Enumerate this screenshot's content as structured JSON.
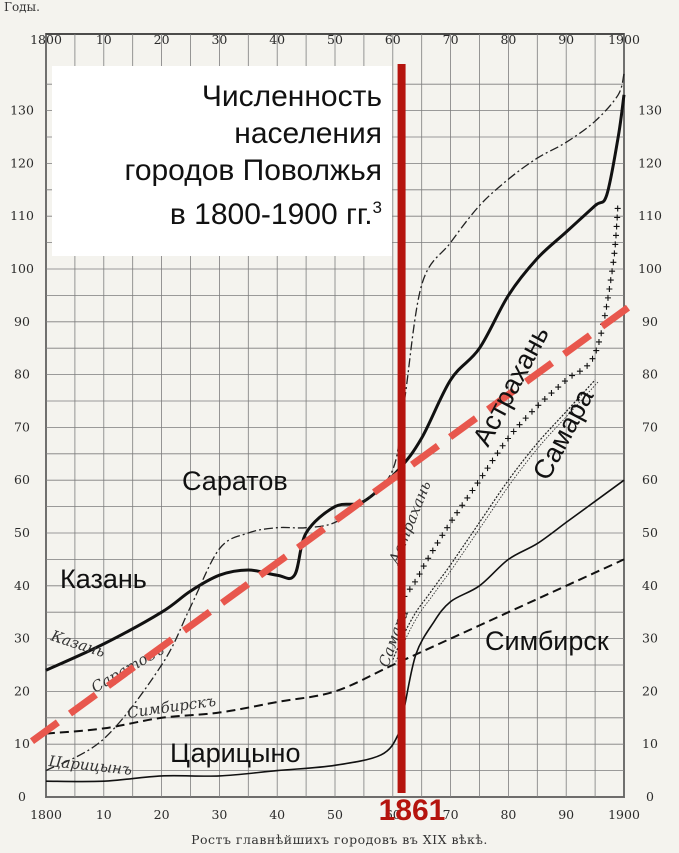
{
  "header": {
    "y_axis_title": "Годы."
  },
  "title": {
    "line1": "Численность",
    "line2": "населения",
    "line3": "городов Поволжья",
    "line4": "в 1800-1900 гг.",
    "footnote": "3"
  },
  "caption": "Ростъ главнѣйшихъ городовъ въ XIX вѣкѣ.",
  "marker": {
    "year": 1861,
    "label": "1861",
    "color": "#b5140e"
  },
  "trend": {
    "color": "#e8574d",
    "from": [
      1800,
      10
    ],
    "to": [
      1902,
      94
    ],
    "dash_color_note": "red dashed trend line"
  },
  "labels": {
    "kazan": "Казань",
    "saratov": "Саратов",
    "astrakhan": "Астрахань",
    "samara": "Самара",
    "simbirsk": "Симбирск",
    "tsaritsyno": "Царицыно"
  },
  "script_labels": {
    "kazan": "Казань",
    "saratov": "Саратовъ",
    "simbirsk": "Симбирскъ",
    "astrakhan": "Астрахань",
    "samara": "Самара",
    "tsaritsyn": "Царицынъ"
  },
  "chart_data": {
    "type": "line",
    "x_axis_ticks": [
      "1800",
      "10",
      "20",
      "30",
      "40",
      "50",
      "60",
      "70",
      "80",
      "90",
      "1900"
    ],
    "y_axis_ticks": [
      "0",
      "10",
      "20",
      "30",
      "40",
      "50",
      "60",
      "70",
      "80",
      "90",
      "100",
      "110",
      "120",
      "130"
    ],
    "xlim": [
      1800,
      1900
    ],
    "ylim": [
      0,
      140
    ],
    "grid": true,
    "series": [
      {
        "name": "Казань",
        "style": "thick-solid",
        "x": [
          1800,
          1810,
          1820,
          1825,
          1830,
          1835,
          1840,
          1843,
          1845,
          1850,
          1855,
          1861,
          1865,
          1870,
          1875,
          1880,
          1885,
          1890,
          1895,
          1897,
          1899,
          1900
        ],
        "y": [
          24,
          29,
          35,
          39,
          42,
          43,
          42,
          42,
          50,
          55,
          56,
          62,
          68,
          79,
          85,
          95,
          102,
          107,
          112,
          114,
          125,
          133
        ]
      },
      {
        "name": "Саратов",
        "style": "dash-dot",
        "x": [
          1800,
          1810,
          1820,
          1825,
          1830,
          1835,
          1840,
          1845,
          1850,
          1855,
          1860,
          1862,
          1865,
          1870,
          1875,
          1880,
          1885,
          1890,
          1895,
          1899,
          1900
        ],
        "y": [
          5,
          11,
          25,
          36,
          47,
          50,
          51,
          51,
          52,
          56,
          62,
          75,
          97,
          105,
          112,
          117,
          121,
          124,
          128,
          133,
          137
        ]
      },
      {
        "name": "Астрахань",
        "style": "crosses",
        "x": [
          1862,
          1864,
          1866,
          1870,
          1875,
          1880,
          1885,
          1890,
          1895,
          1898,
          1899
        ],
        "y": [
          38,
          41,
          45,
          52,
          60,
          68,
          74,
          79,
          84,
          100,
          113
        ]
      },
      {
        "name": "Самара",
        "style": "wavy",
        "x": [
          1860,
          1862,
          1864,
          1866,
          1868,
          1870,
          1875,
          1880,
          1885,
          1890,
          1895
        ],
        "y": [
          26,
          31,
          35,
          38,
          41,
          44,
          52,
          60,
          67,
          73,
          79
        ]
      },
      {
        "name": "Симбирск",
        "style": "dashed",
        "x": [
          1800,
          1810,
          1820,
          1830,
          1840,
          1850,
          1860,
          1870,
          1880,
          1890,
          1900
        ],
        "y": [
          12,
          13,
          15,
          16,
          18,
          20,
          25,
          30,
          35,
          40,
          45
        ]
      },
      {
        "name": "Царицыно",
        "style": "thin-solid",
        "x": [
          1800,
          1810,
          1820,
          1830,
          1840,
          1850,
          1858,
          1861,
          1862,
          1864,
          1867,
          1870,
          1875,
          1880,
          1885,
          1890,
          1895,
          1900
        ],
        "y": [
          3,
          3,
          4,
          4,
          5,
          6,
          8,
          12,
          17,
          27,
          33,
          37,
          40,
          45,
          48,
          52,
          56,
          60
        ]
      }
    ]
  }
}
